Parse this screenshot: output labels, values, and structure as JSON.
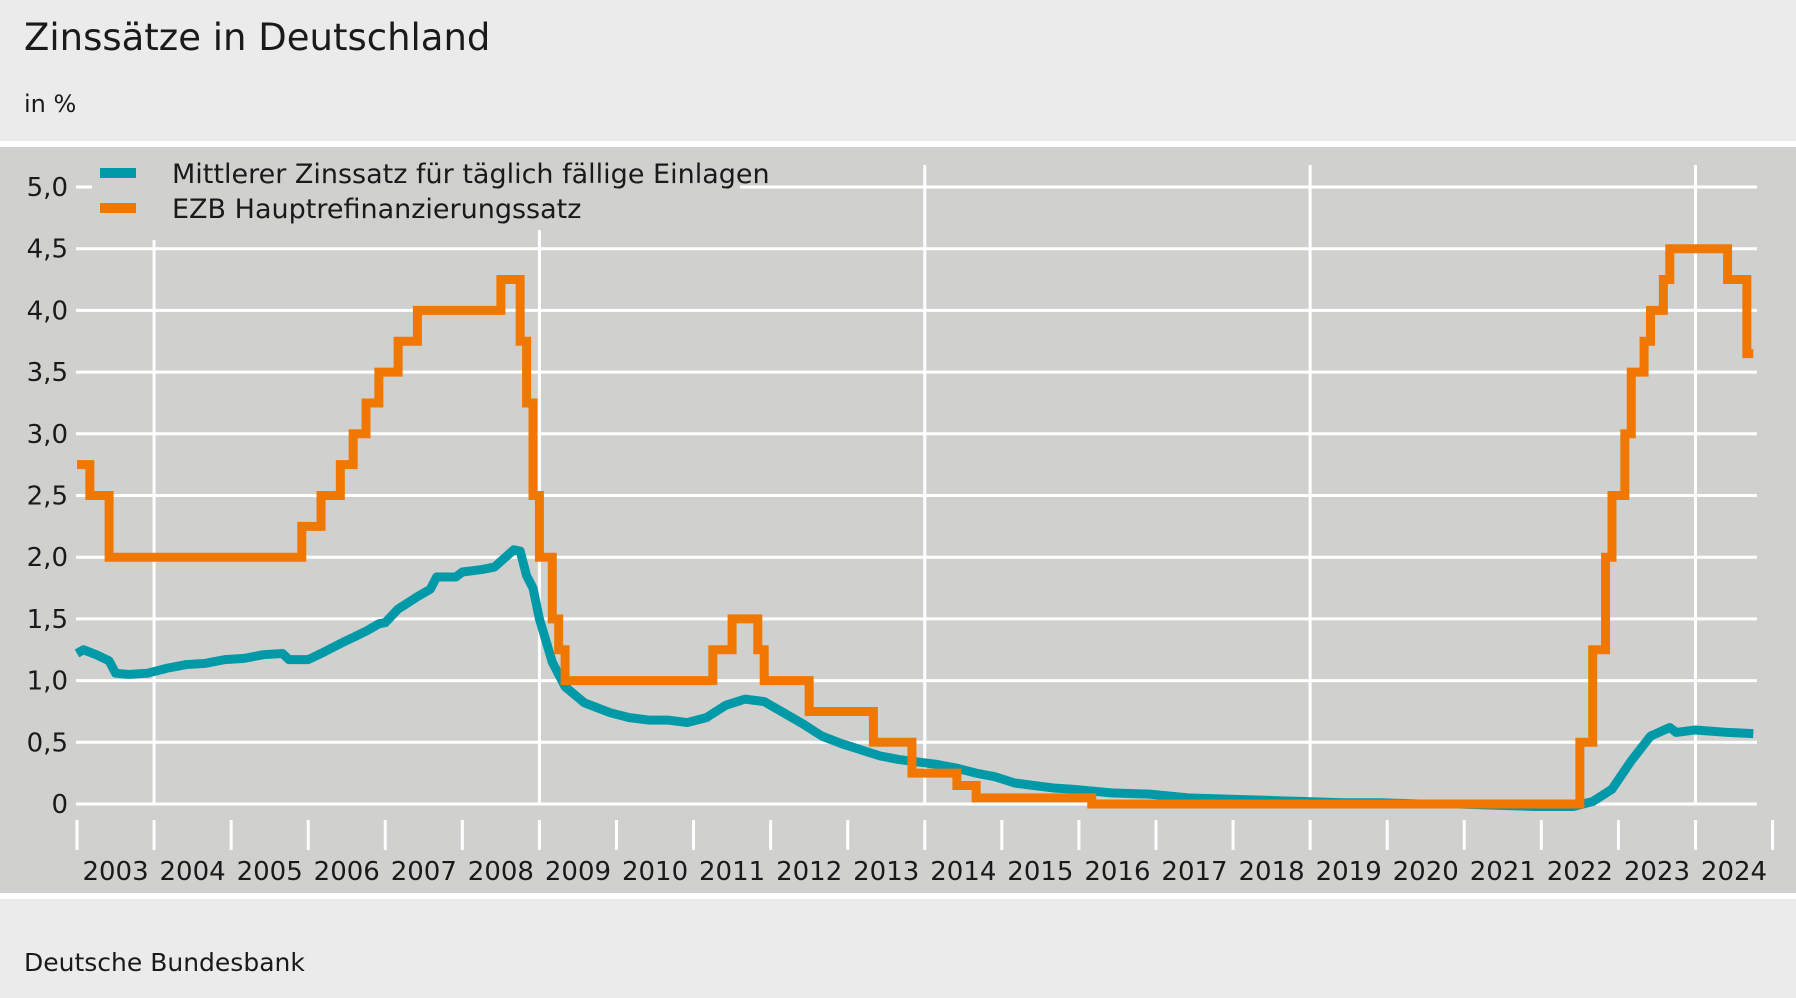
{
  "title": "Zinssätze in Deutschland",
  "subtitle": "in %",
  "source": "Deutsche Bundesbank",
  "chart_data": {
    "type": "line",
    "title": "Zinssätze in Deutschland",
    "ylabel": "in %",
    "ylim": [
      0,
      5.0
    ],
    "xlim": [
      "2003-01",
      "2024-12"
    ],
    "yticks": [
      "0",
      "0,5",
      "1,0",
      "1,5",
      "2,0",
      "2,5",
      "3,0",
      "3,5",
      "4,0",
      "4,5",
      "5,0"
    ],
    "ytick_values": [
      0,
      0.5,
      1.0,
      1.5,
      2.0,
      2.5,
      3.0,
      3.5,
      4.0,
      4.5,
      5.0
    ],
    "xticks": [
      "2003",
      "2004",
      "2005",
      "2006",
      "2007",
      "2008",
      "2009",
      "2010",
      "2011",
      "2012",
      "2013",
      "2014",
      "2015",
      "2016",
      "2017",
      "2018",
      "2019",
      "2020",
      "2021",
      "2022",
      "2023",
      "2024"
    ],
    "grid": true,
    "legend_position": "top-left",
    "series": [
      {
        "name": "Mittlerer Zinssatz für täglich fällige Einlagen",
        "color": "#0099a8",
        "step": false,
        "points": [
          [
            "2003-01",
            1.22
          ],
          [
            "2003-02",
            1.25
          ],
          [
            "2003-04",
            1.21
          ],
          [
            "2003-06",
            1.16
          ],
          [
            "2003-07",
            1.06
          ],
          [
            "2003-09",
            1.05
          ],
          [
            "2003-12",
            1.06
          ],
          [
            "2004-03",
            1.1
          ],
          [
            "2004-06",
            1.13
          ],
          [
            "2004-09",
            1.14
          ],
          [
            "2004-12",
            1.17
          ],
          [
            "2005-03",
            1.18
          ],
          [
            "2005-06",
            1.21
          ],
          [
            "2005-09",
            1.22
          ],
          [
            "2005-10",
            1.17
          ],
          [
            "2005-12",
            1.17
          ],
          [
            "2006-01",
            1.17
          ],
          [
            "2006-03",
            1.22
          ],
          [
            "2006-06",
            1.3
          ],
          [
            "2006-08",
            1.35
          ],
          [
            "2006-10",
            1.4
          ],
          [
            "2006-12",
            1.46
          ],
          [
            "2007-01",
            1.47
          ],
          [
            "2007-03",
            1.58
          ],
          [
            "2007-06",
            1.68
          ],
          [
            "2007-08",
            1.74
          ],
          [
            "2007-09",
            1.84
          ],
          [
            "2007-12",
            1.84
          ],
          [
            "2008-01",
            1.88
          ],
          [
            "2008-04",
            1.9
          ],
          [
            "2008-06",
            1.92
          ],
          [
            "2008-09",
            2.06
          ],
          [
            "2008-10",
            2.05
          ],
          [
            "2008-11",
            1.85
          ],
          [
            "2008-12",
            1.75
          ],
          [
            "2009-01",
            1.5
          ],
          [
            "2009-03",
            1.15
          ],
          [
            "2009-05",
            0.95
          ],
          [
            "2009-08",
            0.82
          ],
          [
            "2009-12",
            0.74
          ],
          [
            "2010-03",
            0.7
          ],
          [
            "2010-06",
            0.68
          ],
          [
            "2010-09",
            0.68
          ],
          [
            "2010-12",
            0.66
          ],
          [
            "2011-03",
            0.7
          ],
          [
            "2011-06",
            0.8
          ],
          [
            "2011-09",
            0.85
          ],
          [
            "2011-12",
            0.83
          ],
          [
            "2012-03",
            0.74
          ],
          [
            "2012-06",
            0.65
          ],
          [
            "2012-09",
            0.55
          ],
          [
            "2012-12",
            0.49
          ],
          [
            "2013-03",
            0.44
          ],
          [
            "2013-06",
            0.39
          ],
          [
            "2013-09",
            0.36
          ],
          [
            "2013-12",
            0.34
          ],
          [
            "2014-03",
            0.32
          ],
          [
            "2014-06",
            0.29
          ],
          [
            "2014-09",
            0.25
          ],
          [
            "2014-12",
            0.22
          ],
          [
            "2015-03",
            0.17
          ],
          [
            "2015-06",
            0.15
          ],
          [
            "2015-09",
            0.13
          ],
          [
            "2015-12",
            0.12
          ],
          [
            "2016-06",
            0.09
          ],
          [
            "2016-12",
            0.08
          ],
          [
            "2017-06",
            0.05
          ],
          [
            "2017-12",
            0.04
          ],
          [
            "2018-06",
            0.03
          ],
          [
            "2018-12",
            0.02
          ],
          [
            "2019-06",
            0.01
          ],
          [
            "2019-12",
            0.01
          ],
          [
            "2020-06",
            0.0
          ],
          [
            "2020-12",
            0.0
          ],
          [
            "2021-06",
            -0.01
          ],
          [
            "2021-12",
            -0.02
          ],
          [
            "2022-06",
            -0.02
          ],
          [
            "2022-09",
            0.02
          ],
          [
            "2022-12",
            0.12
          ],
          [
            "2023-03",
            0.35
          ],
          [
            "2023-06",
            0.55
          ],
          [
            "2023-09",
            0.62
          ],
          [
            "2023-10",
            0.58
          ],
          [
            "2024-01",
            0.6
          ],
          [
            "2024-06",
            0.58
          ],
          [
            "2024-10",
            0.57
          ]
        ]
      },
      {
        "name": "EZB Hauptrefinanzierungssatz",
        "color": "#f07800",
        "step": true,
        "points": [
          [
            "2003-01",
            2.75
          ],
          [
            "2003-03",
            2.5
          ],
          [
            "2003-06",
            2.0
          ],
          [
            "2005-12",
            2.25
          ],
          [
            "2006-03",
            2.5
          ],
          [
            "2006-06",
            2.75
          ],
          [
            "2006-08",
            3.0
          ],
          [
            "2006-10",
            3.25
          ],
          [
            "2006-12",
            3.5
          ],
          [
            "2007-03",
            3.75
          ],
          [
            "2007-06",
            4.0
          ],
          [
            "2008-07",
            4.25
          ],
          [
            "2008-10",
            3.75
          ],
          [
            "2008-11",
            3.25
          ],
          [
            "2008-12",
            2.5
          ],
          [
            "2009-01",
            2.0
          ],
          [
            "2009-03",
            1.5
          ],
          [
            "2009-04",
            1.25
          ],
          [
            "2009-05",
            1.0
          ],
          [
            "2011-04",
            1.25
          ],
          [
            "2011-07",
            1.5
          ],
          [
            "2011-11",
            1.25
          ],
          [
            "2011-12",
            1.0
          ],
          [
            "2012-07",
            0.75
          ],
          [
            "2013-05",
            0.5
          ],
          [
            "2013-11",
            0.25
          ],
          [
            "2014-06",
            0.15
          ],
          [
            "2014-09",
            0.05
          ],
          [
            "2016-03",
            0.0
          ],
          [
            "2022-07",
            0.5
          ],
          [
            "2022-09",
            1.25
          ],
          [
            "2022-11",
            2.0
          ],
          [
            "2022-12",
            2.5
          ],
          [
            "2023-02",
            3.0
          ],
          [
            "2023-03",
            3.5
          ],
          [
            "2023-05",
            3.75
          ],
          [
            "2023-06",
            4.0
          ],
          [
            "2023-08",
            4.25
          ],
          [
            "2023-09",
            4.5
          ],
          [
            "2024-06",
            4.25
          ],
          [
            "2024-09",
            3.65
          ],
          [
            "2024-10",
            3.65
          ]
        ]
      }
    ]
  }
}
